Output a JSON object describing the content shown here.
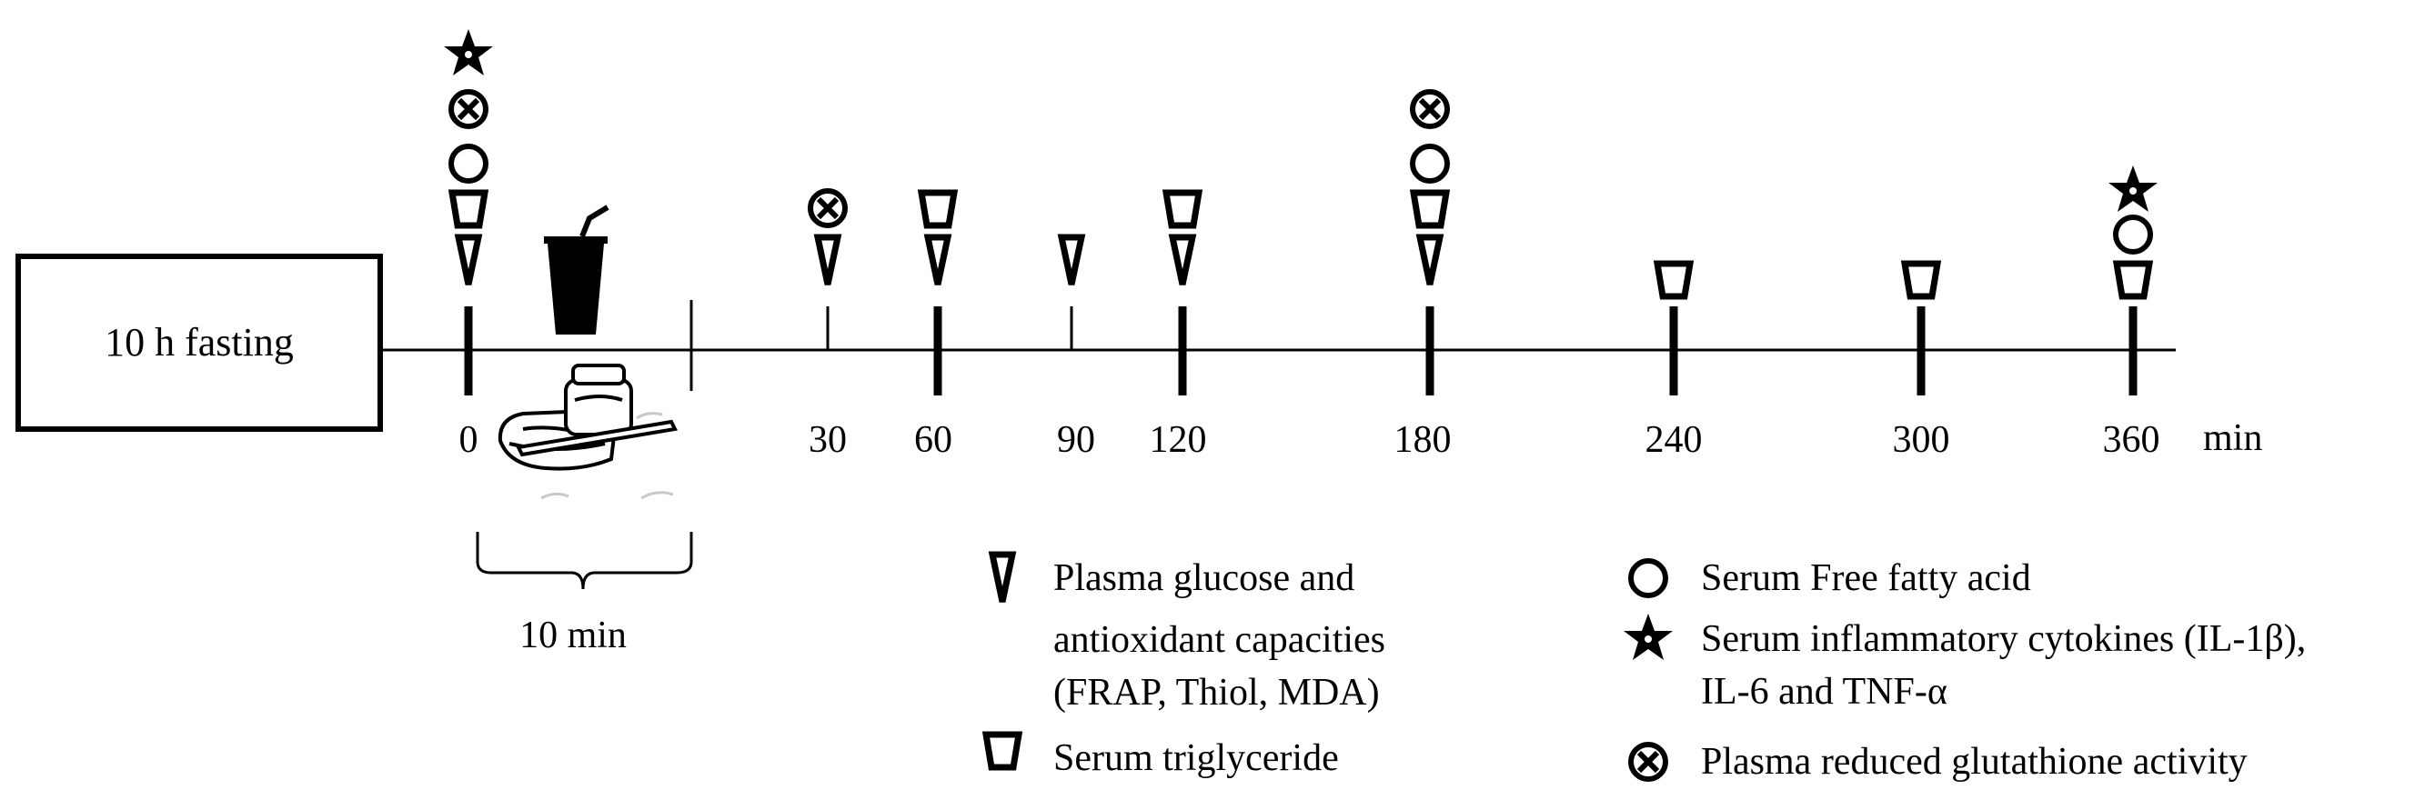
{
  "fasting_box": {
    "label": "10 h fasting"
  },
  "timeline": {
    "unit": "min",
    "ticks": [
      "0",
      "30",
      "60",
      "90",
      "120",
      "180",
      "240",
      "300",
      "360"
    ],
    "meal_duration_label": "10 min"
  },
  "legend": {
    "glucose": {
      "symbol": "triangle-icon",
      "line1": "Plasma glucose and",
      "line2": "antioxidant capacities",
      "line3": "(FRAP, Thiol, MDA)"
    },
    "triglyceride": {
      "symbol": "cup-icon",
      "text": "Serum triglyceride"
    },
    "ffa": {
      "symbol": "circle-icon",
      "text": "Serum Free fatty acid"
    },
    "cytokines": {
      "symbol": "star-icon",
      "line1": "Serum inflammatory cytokines (IL-1β),",
      "line2": "IL-6 and TNF-α"
    },
    "glutathione": {
      "symbol": "circle-x-icon",
      "text": "Plasma reduced glutathione activity"
    }
  },
  "sampling": [
    {
      "time": "0",
      "markers": [
        "triangle",
        "cup",
        "circle",
        "circle-x",
        "star"
      ]
    },
    {
      "time": "30",
      "markers": [
        "triangle",
        "circle-x"
      ]
    },
    {
      "time": "60",
      "markers": [
        "triangle",
        "cup"
      ]
    },
    {
      "time": "90",
      "markers": [
        "triangle"
      ]
    },
    {
      "time": "120",
      "markers": [
        "triangle",
        "cup"
      ]
    },
    {
      "time": "180",
      "markers": [
        "triangle",
        "cup",
        "circle",
        "circle-x"
      ]
    },
    {
      "time": "240",
      "markers": [
        "cup"
      ]
    },
    {
      "time": "300",
      "markers": [
        "cup"
      ]
    },
    {
      "time": "360",
      "markers": [
        "cup",
        "circle",
        "star"
      ]
    }
  ]
}
